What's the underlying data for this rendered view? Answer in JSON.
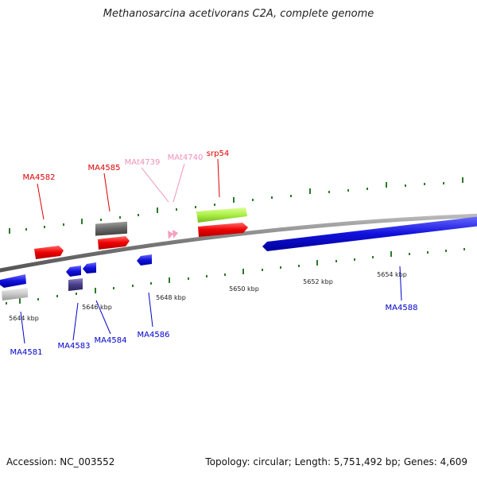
{
  "title": "Methanosarcina acetivorans C2A, complete genome",
  "footer": {
    "accession": "Accession: NC_003552",
    "topology": "Topology: circular; Length: 5,751,492 bp; Genes: 4,609"
  },
  "colors": {
    "forward_gene": "#ee0000",
    "reverse_gene": "#1111dd",
    "rna_label": "#f4a0c0",
    "srp_gene": "#aaee44",
    "backbone": "#777777",
    "tick": "#2a7a2a",
    "label_red": "#dd0000",
    "label_blue": "#0000cc",
    "label_pink": "#f090b8"
  },
  "scale_labels": [
    "5644 kbp",
    "5646 kbp",
    "5648 kbp",
    "5650 kbp",
    "5652 kbp",
    "5654 kbp"
  ],
  "gene_labels": {
    "top": [
      "MA4582",
      "MA4585",
      "MAt4739",
      "MAt4740",
      "srp54"
    ],
    "bottom": [
      "MA4581",
      "MA4583",
      "MA4584",
      "MA4586",
      "MA4588"
    ]
  }
}
